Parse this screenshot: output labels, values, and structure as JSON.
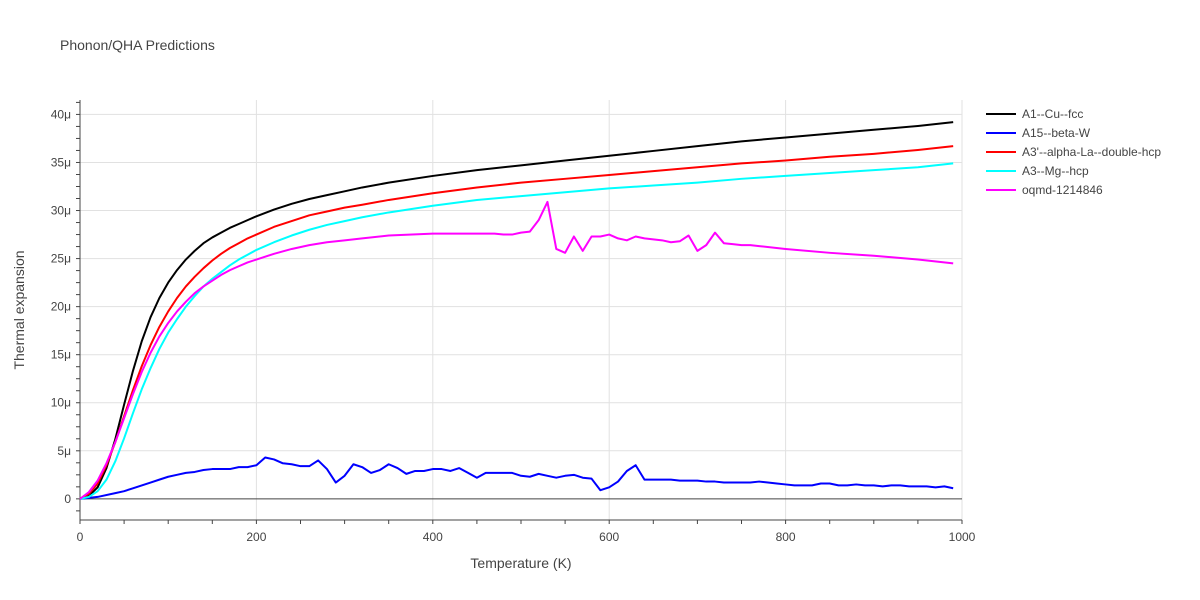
{
  "chart_data": {
    "type": "line",
    "title": "Phonon/QHA Predictions",
    "xlabel": "Temperature (K)",
    "ylabel": "Thermal expansion",
    "xlim": [
      0,
      1000
    ],
    "ylim": [
      -2.2e-06,
      4.15e-05
    ],
    "x_ticks": [
      0,
      200,
      400,
      600,
      800,
      1000
    ],
    "x_tick_labels": [
      "0",
      "200",
      "400",
      "600",
      "800",
      "1000"
    ],
    "y_ticks": [
      0,
      5e-06,
      1e-05,
      1.5e-05,
      2e-05,
      2.5e-05,
      3e-05,
      3.5e-05,
      4e-05
    ],
    "y_tick_labels": [
      "0",
      "5μ",
      "10μ",
      "15μ",
      "20μ",
      "25μ",
      "30μ",
      "35μ",
      "40μ"
    ],
    "grid": true,
    "legend_position": "top-right",
    "series": [
      {
        "name": "A1--Cu--fcc",
        "color": "#000000",
        "x": [
          0,
          10,
          20,
          30,
          40,
          50,
          60,
          70,
          80,
          90,
          100,
          110,
          120,
          130,
          140,
          150,
          160,
          170,
          180,
          190,
          200,
          220,
          240,
          260,
          280,
          300,
          320,
          350,
          400,
          450,
          500,
          550,
          600,
          650,
          700,
          750,
          800,
          850,
          900,
          950,
          990
        ],
        "y": [
          0,
          3e-07,
          1.2e-06,
          3.2e-06,
          6.2e-06,
          9.8e-06,
          1.33e-05,
          1.64e-05,
          1.89e-05,
          2.09e-05,
          2.25e-05,
          2.38e-05,
          2.49e-05,
          2.58e-05,
          2.66e-05,
          2.72e-05,
          2.77e-05,
          2.82e-05,
          2.86e-05,
          2.9e-05,
          2.94e-05,
          3.01e-05,
          3.07e-05,
          3.12e-05,
          3.16e-05,
          3.2e-05,
          3.24e-05,
          3.29e-05,
          3.36e-05,
          3.42e-05,
          3.47e-05,
          3.52e-05,
          3.57e-05,
          3.62e-05,
          3.67e-05,
          3.72e-05,
          3.76e-05,
          3.8e-05,
          3.84e-05,
          3.88e-05,
          3.92e-05
        ]
      },
      {
        "name": "A15--beta-W",
        "color": "#0000ff",
        "x": [
          0,
          20,
          40,
          50,
          60,
          70,
          80,
          90,
          100,
          110,
          120,
          130,
          140,
          150,
          160,
          170,
          180,
          190,
          200,
          210,
          220,
          230,
          240,
          250,
          260,
          270,
          280,
          290,
          300,
          310,
          320,
          330,
          340,
          350,
          360,
          370,
          380,
          390,
          400,
          410,
          420,
          430,
          440,
          450,
          460,
          470,
          480,
          490,
          500,
          510,
          520,
          530,
          540,
          550,
          560,
          570,
          580,
          590,
          600,
          610,
          620,
          630,
          640,
          650,
          660,
          670,
          680,
          690,
          700,
          710,
          720,
          730,
          740,
          750,
          760,
          770,
          780,
          790,
          800,
          810,
          820,
          830,
          840,
          850,
          860,
          870,
          880,
          890,
          900,
          910,
          920,
          930,
          940,
          950,
          960,
          970,
          980,
          990
        ],
        "y": [
          0,
          2e-07,
          6e-07,
          8e-07,
          1.1e-06,
          1.4e-06,
          1.7e-06,
          2e-06,
          2.3e-06,
          2.5e-06,
          2.7e-06,
          2.8e-06,
          3e-06,
          3.1e-06,
          3.1e-06,
          3.1e-06,
          3.3e-06,
          3.3e-06,
          3.5e-06,
          4.3e-06,
          4.1e-06,
          3.7e-06,
          3.6e-06,
          3.4e-06,
          3.4e-06,
          4e-06,
          3.1e-06,
          1.7e-06,
          2.4e-06,
          3.6e-06,
          3.3e-06,
          2.7e-06,
          3e-06,
          3.6e-06,
          3.2e-06,
          2.6e-06,
          2.9e-06,
          2.9e-06,
          3.1e-06,
          3.1e-06,
          2.9e-06,
          3.2e-06,
          2.7e-06,
          2.2e-06,
          2.7e-06,
          2.7e-06,
          2.7e-06,
          2.7e-06,
          2.4e-06,
          2.3e-06,
          2.6e-06,
          2.4e-06,
          2.2e-06,
          2.4e-06,
          2.5e-06,
          2.2e-06,
          2.1e-06,
          9e-07,
          1.2e-06,
          1.8e-06,
          2.9e-06,
          3.5e-06,
          2e-06,
          2e-06,
          2e-06,
          2e-06,
          1.9e-06,
          1.9e-06,
          1.9e-06,
          1.8e-06,
          1.8e-06,
          1.7e-06,
          1.7e-06,
          1.7e-06,
          1.7e-06,
          1.8e-06,
          1.7e-06,
          1.6e-06,
          1.5e-06,
          1.4e-06,
          1.4e-06,
          1.4e-06,
          1.6e-06,
          1.6e-06,
          1.4e-06,
          1.4e-06,
          1.5e-06,
          1.4e-06,
          1.4e-06,
          1.3e-06,
          1.4e-06,
          1.4e-06,
          1.3e-06,
          1.3e-06,
          1.3e-06,
          1.2e-06,
          1.3e-06,
          1.1e-06
        ]
      },
      {
        "name": "A3'--alpha-La--double-hcp",
        "color": "#ff0000",
        "x": [
          0,
          10,
          20,
          30,
          40,
          50,
          60,
          70,
          80,
          90,
          100,
          110,
          120,
          130,
          140,
          150,
          160,
          170,
          180,
          190,
          200,
          220,
          240,
          260,
          280,
          300,
          320,
          350,
          400,
          450,
          500,
          550,
          600,
          650,
          700,
          750,
          800,
          850,
          900,
          950,
          990
        ],
        "y": [
          0,
          5e-07,
          1.6e-06,
          3.5e-06,
          5.9e-06,
          8.6e-06,
          1.13e-05,
          1.38e-05,
          1.6e-05,
          1.79e-05,
          1.95e-05,
          2.09e-05,
          2.21e-05,
          2.31e-05,
          2.4e-05,
          2.48e-05,
          2.55e-05,
          2.61e-05,
          2.66e-05,
          2.71e-05,
          2.75e-05,
          2.83e-05,
          2.89e-05,
          2.95e-05,
          2.99e-05,
          3.03e-05,
          3.06e-05,
          3.11e-05,
          3.18e-05,
          3.24e-05,
          3.29e-05,
          3.33e-05,
          3.37e-05,
          3.41e-05,
          3.45e-05,
          3.49e-05,
          3.52e-05,
          3.56e-05,
          3.59e-05,
          3.63e-05,
          3.67e-05
        ]
      },
      {
        "name": "A3--Mg--hcp",
        "color": "#00ffff",
        "x": [
          0,
          10,
          20,
          30,
          40,
          50,
          60,
          70,
          80,
          90,
          100,
          110,
          120,
          130,
          140,
          150,
          160,
          170,
          180,
          190,
          200,
          220,
          240,
          260,
          280,
          300,
          320,
          350,
          400,
          450,
          500,
          550,
          600,
          650,
          700,
          750,
          800,
          850,
          900,
          950,
          990
        ],
        "y": [
          0,
          2e-07,
          8e-07,
          2e-06,
          3.9e-06,
          6.3e-06,
          8.9e-06,
          1.14e-05,
          1.36e-05,
          1.56e-05,
          1.73e-05,
          1.87e-05,
          2e-05,
          2.11e-05,
          2.21e-05,
          2.29e-05,
          2.36e-05,
          2.43e-05,
          2.49e-05,
          2.54e-05,
          2.59e-05,
          2.67e-05,
          2.74e-05,
          2.8e-05,
          2.85e-05,
          2.89e-05,
          2.93e-05,
          2.98e-05,
          3.05e-05,
          3.11e-05,
          3.15e-05,
          3.19e-05,
          3.23e-05,
          3.26e-05,
          3.29e-05,
          3.33e-05,
          3.36e-05,
          3.39e-05,
          3.42e-05,
          3.45e-05,
          3.49e-05
        ]
      },
      {
        "name": "oqmd-1214846",
        "color": "#ff00ff",
        "x": [
          0,
          10,
          20,
          30,
          40,
          50,
          60,
          70,
          80,
          90,
          100,
          110,
          120,
          130,
          140,
          150,
          160,
          170,
          180,
          190,
          200,
          220,
          240,
          260,
          280,
          300,
          320,
          350,
          400,
          450,
          470,
          480,
          490,
          500,
          510,
          520,
          530,
          540,
          550,
          560,
          570,
          580,
          590,
          600,
          610,
          620,
          630,
          640,
          650,
          660,
          670,
          680,
          690,
          700,
          710,
          720,
          730,
          740,
          750,
          760,
          770,
          800,
          850,
          900,
          950,
          990
        ],
        "y": [
          0,
          7e-07,
          1.9e-06,
          3.7e-06,
          5.9e-06,
          8.4e-06,
          1.09e-05,
          1.32e-05,
          1.52e-05,
          1.69e-05,
          1.83e-05,
          1.95e-05,
          2.05e-05,
          2.14e-05,
          2.21e-05,
          2.27e-05,
          2.33e-05,
          2.38e-05,
          2.42e-05,
          2.46e-05,
          2.49e-05,
          2.55e-05,
          2.6e-05,
          2.64e-05,
          2.67e-05,
          2.69e-05,
          2.71e-05,
          2.74e-05,
          2.76e-05,
          2.76e-05,
          2.76e-05,
          2.75e-05,
          2.75e-05,
          2.77e-05,
          2.78e-05,
          2.9e-05,
          3.09e-05,
          2.6e-05,
          2.56e-05,
          2.73e-05,
          2.58e-05,
          2.73e-05,
          2.73e-05,
          2.75e-05,
          2.71e-05,
          2.69e-05,
          2.73e-05,
          2.71e-05,
          2.7e-05,
          2.69e-05,
          2.67e-05,
          2.68e-05,
          2.74e-05,
          2.58e-05,
          2.64e-05,
          2.77e-05,
          2.66e-05,
          2.65e-05,
          2.64e-05,
          2.64e-05,
          2.63e-05,
          2.6e-05,
          2.56e-05,
          2.53e-05,
          2.49e-05,
          2.45e-05
        ]
      }
    ]
  }
}
